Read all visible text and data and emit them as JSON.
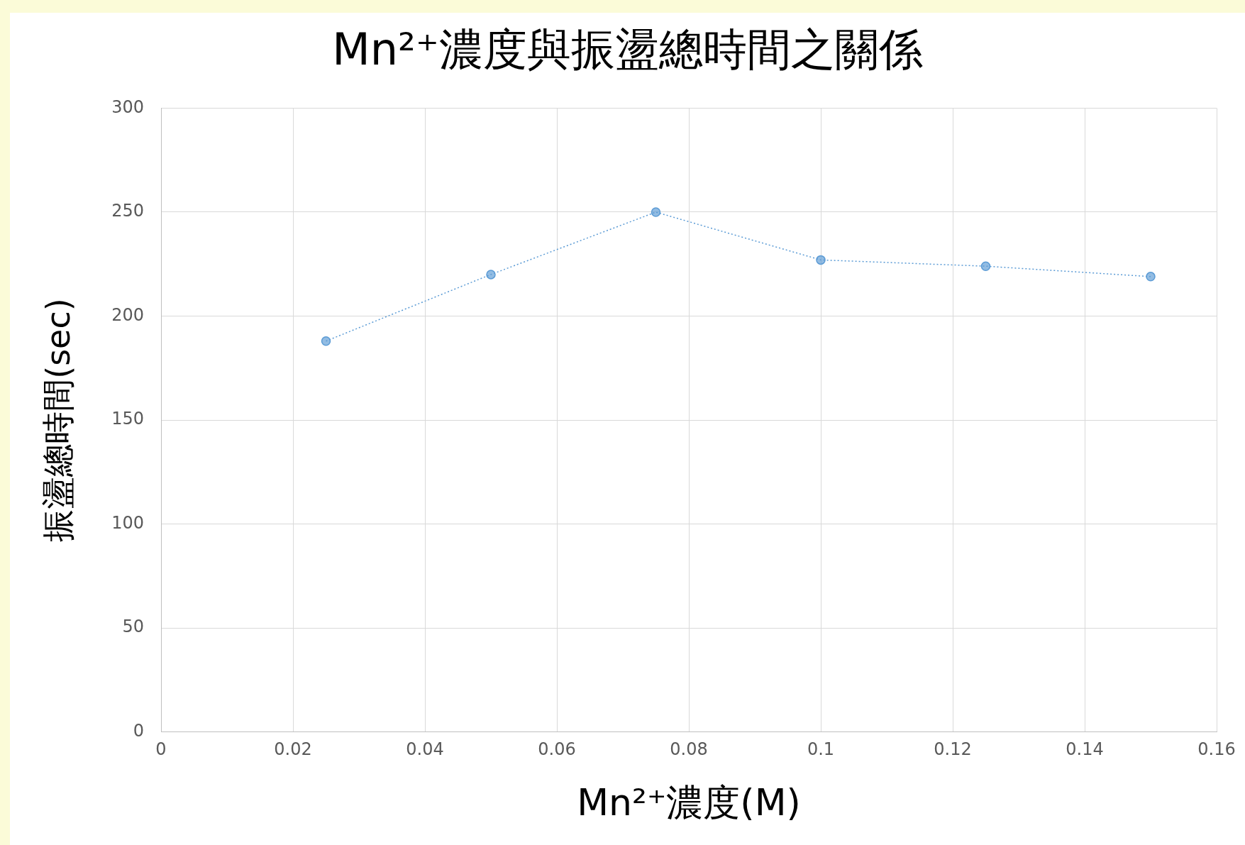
{
  "chart_data": {
    "type": "line",
    "title": "Mn²⁺濃度與振盪總時間之關係",
    "xlabel": "Mn²⁺濃度(M)",
    "ylabel": "振盪總時間(sec)",
    "x": [
      0.025,
      0.05,
      0.075,
      0.1,
      0.125,
      0.15
    ],
    "series": [
      {
        "color": "#5b9bd5",
        "values": [
          188,
          220,
          250,
          227,
          224,
          219
        ]
      }
    ],
    "xlim": [
      0,
      0.16
    ],
    "xticks": [
      0,
      0.02,
      0.04,
      0.06,
      0.08,
      0.1,
      0.12,
      0.14,
      0.16
    ],
    "ylim": [
      0,
      300
    ],
    "yticks": [
      0,
      50,
      100,
      150,
      200,
      250,
      300
    ],
    "grid": true,
    "legend": false,
    "marker": "circle",
    "line_style": "dotted"
  }
}
